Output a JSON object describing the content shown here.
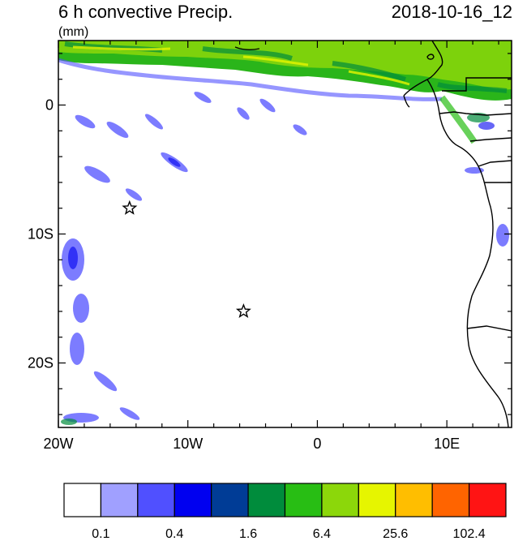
{
  "header": {
    "title": "6 h convective Precip.",
    "date": "2018-10-16_12",
    "units": "(mm)"
  },
  "axes": {
    "lat_ticks": [
      {
        "label": "0",
        "value": 0
      },
      {
        "label": "10S",
        "value": -10
      },
      {
        "label": "20S",
        "value": -20
      }
    ],
    "lon_ticks": [
      {
        "label": "20W",
        "value": -20
      },
      {
        "label": "10W",
        "value": -10
      },
      {
        "label": "0",
        "value": 0
      },
      {
        "label": "10E",
        "value": 10
      }
    ],
    "lon_range": [
      -20,
      15
    ],
    "lat_range": [
      -25,
      5
    ]
  },
  "markers": [
    {
      "name": "star-marker-1",
      "lon": -14.5,
      "lat": -8
    },
    {
      "name": "star-marker-2",
      "lon": -5.7,
      "lat": -16
    }
  ],
  "colorbar": {
    "colors": [
      "#ffffff",
      "#a0a0ff",
      "#5050ff",
      "#0000f0",
      "#003c96",
      "#008c3c",
      "#28be14",
      "#8cd70a",
      "#e6f500",
      "#ffbe00",
      "#ff6400",
      "#ff1414"
    ],
    "labels": [
      {
        "text": "0.1",
        "after_box": 1
      },
      {
        "text": "0.4",
        "after_box": 3
      },
      {
        "text": "1.6",
        "after_box": 5
      },
      {
        "text": "6.4",
        "after_box": 7
      },
      {
        "text": "25.6",
        "after_box": 9
      },
      {
        "text": "102.4",
        "after_box": 11
      }
    ]
  }
}
